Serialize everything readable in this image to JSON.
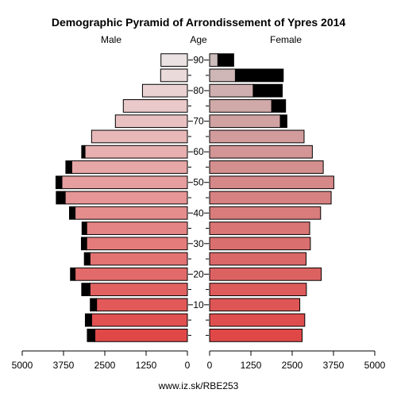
{
  "chart_data": {
    "type": "bar",
    "title": "Demographic Pyramid of Arrondissement of Ypres 2014",
    "left_header": "Male",
    "center_header": "Age",
    "right_header": "Female",
    "footer": "www.iz.sk/RBE253",
    "xlim": [
      0,
      5000
    ],
    "x_ticks": [
      "5000",
      "3750",
      "2500",
      "1250",
      "0",
      "0",
      "1250",
      "2500",
      "3750",
      "5000"
    ],
    "age_ticks": [
      "10",
      "20",
      "30",
      "40",
      "50",
      "60",
      "70",
      "80",
      "90"
    ],
    "age_groups": [
      "0-4",
      "5-9",
      "10-14",
      "15-19",
      "20-24",
      "25-29",
      "30-34",
      "35-39",
      "40-44",
      "45-49",
      "50-54",
      "55-59",
      "60-64",
      "65-69",
      "70-74",
      "75-79",
      "80-84",
      "85-89",
      "90+"
    ],
    "male": {
      "native": [
        2800,
        2900,
        2750,
        2950,
        3400,
        2950,
        3050,
        3050,
        3400,
        3700,
        3800,
        3500,
        3100,
        2900,
        2180,
        1940,
        1360,
        810,
        800
      ],
      "foreign": [
        230,
        190,
        190,
        250,
        140,
        170,
        160,
        140,
        170,
        270,
        180,
        180,
        100,
        0,
        0,
        0,
        0,
        0,
        0
      ]
    },
    "female": {
      "native": [
        2800,
        2880,
        2730,
        2930,
        3380,
        2920,
        3050,
        3030,
        3360,
        3680,
        3760,
        3440,
        3110,
        2860,
        2140,
        1880,
        1320,
        780,
        250
      ],
      "foreign": [
        0,
        0,
        0,
        0,
        0,
        0,
        0,
        0,
        0,
        0,
        0,
        0,
        0,
        0,
        0,
        0,
        0,
        0,
        0
      ]
    },
    "female_extra": [
      0,
      0,
      0,
      0,
      0,
      0,
      0,
      0,
      0,
      0,
      0,
      0,
      0,
      0,
      200,
      420,
      880,
      1450,
      480
    ],
    "male_extra": [
      0,
      0,
      0,
      0,
      0,
      0,
      0,
      0,
      0,
      0,
      0,
      0,
      0,
      0,
      0,
      0,
      0,
      0,
      0
    ],
    "colors": {
      "young": "#e04848",
      "old": "#ebe3e3",
      "female_old": "#cdbcbc",
      "foreign": "#000000"
    }
  }
}
